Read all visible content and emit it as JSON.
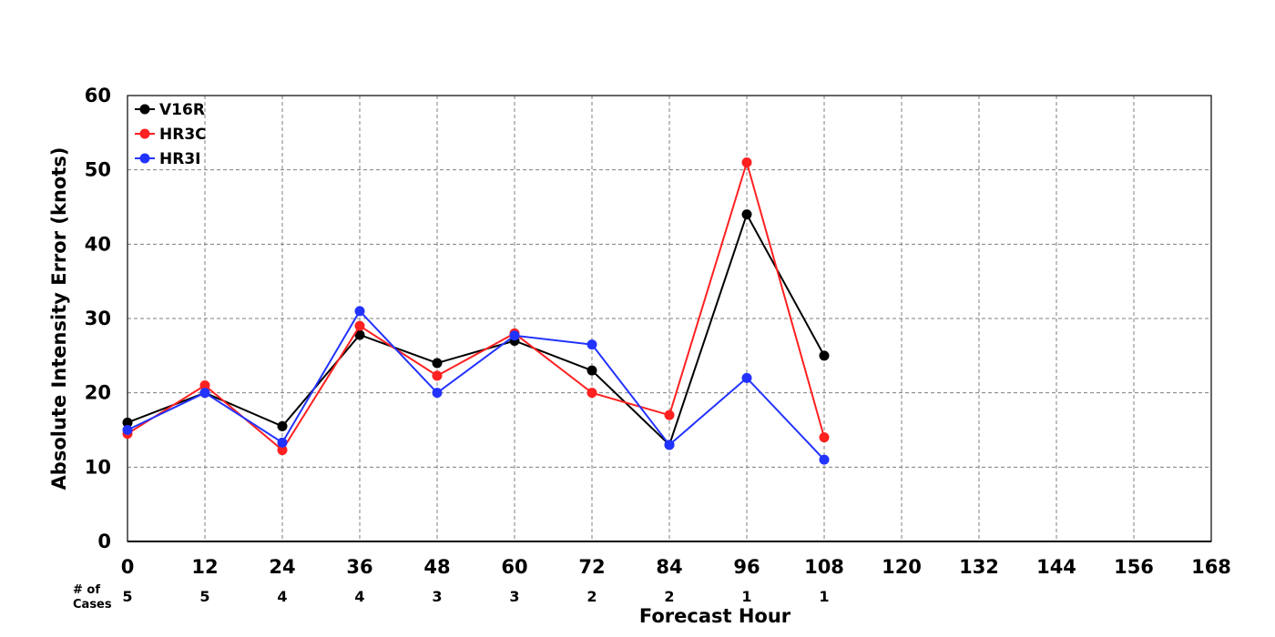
{
  "chart_data": {
    "type": "line",
    "xlabel": "Forecast Hour",
    "ylabel": "Absolute Intensity Error (knots)",
    "xlim": [
      0,
      168
    ],
    "ylim": [
      0,
      60
    ],
    "x_ticks": [
      0,
      12,
      24,
      36,
      48,
      60,
      72,
      84,
      96,
      108,
      120,
      132,
      144,
      156,
      168
    ],
    "y_ticks": [
      0,
      10,
      20,
      30,
      40,
      50,
      60
    ],
    "grid": true,
    "legend_position": "top-left",
    "cases_label": [
      "# of",
      "Cases"
    ],
    "cases": {
      "x": [
        0,
        12,
        24,
        36,
        48,
        60,
        72,
        84,
        96,
        108
      ],
      "values": [
        5,
        5,
        4,
        4,
        3,
        3,
        2,
        2,
        1,
        1
      ]
    },
    "series": [
      {
        "name": "V16R",
        "color": "#000000",
        "x": [
          0,
          12,
          24,
          36,
          48,
          60,
          72,
          84,
          96,
          108
        ],
        "values": [
          16,
          20,
          15.5,
          27.8,
          24,
          27,
          23,
          13,
          44,
          25
        ]
      },
      {
        "name": "HR3C",
        "color": "#ff2020",
        "x": [
          0,
          12,
          24,
          36,
          48,
          60,
          72,
          84,
          96,
          108
        ],
        "values": [
          14.5,
          21,
          12.3,
          29,
          22.3,
          28,
          20,
          17,
          51,
          14
        ]
      },
      {
        "name": "HR3I",
        "color": "#2233ff",
        "x": [
          0,
          12,
          24,
          36,
          48,
          60,
          72,
          84,
          96,
          108
        ],
        "values": [
          15,
          20,
          13.3,
          31,
          20,
          27.7,
          26.5,
          13,
          22,
          11
        ]
      }
    ]
  }
}
